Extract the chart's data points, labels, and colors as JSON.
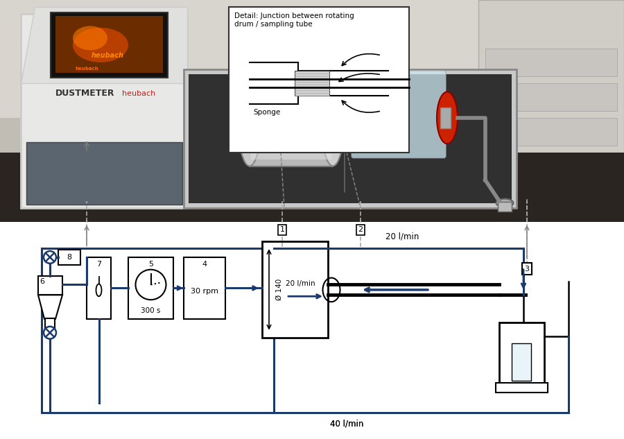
{
  "bg_color": "#ffffff",
  "photo_bg": "#b8b4ac",
  "lc": "#1a3a6b",
  "lc_dark": "#000000",
  "lw_main": 2.0,
  "lw_thick": 3.5,
  "dash_color": "#999999",
  "labels": {
    "20lmin_top": "20 l/min",
    "20lmin_mid": "20 l/min",
    "40lmin_bot": "40 l/min",
    "phi140": "Ø 140",
    "time300": "300 s",
    "rpm30": "30 rpm",
    "detail_title": "Detail: Junction between rotating\ndrum / sampling tube",
    "sponge": "Sponge",
    "dustmeter": "DUSTMETER",
    "heubach": "heubach"
  },
  "nums": {
    "n1": "1",
    "n2": "2",
    "n3": "3",
    "n4": "4",
    "n5": "5",
    "n6": "6",
    "n7": "7",
    "n8": "8"
  }
}
